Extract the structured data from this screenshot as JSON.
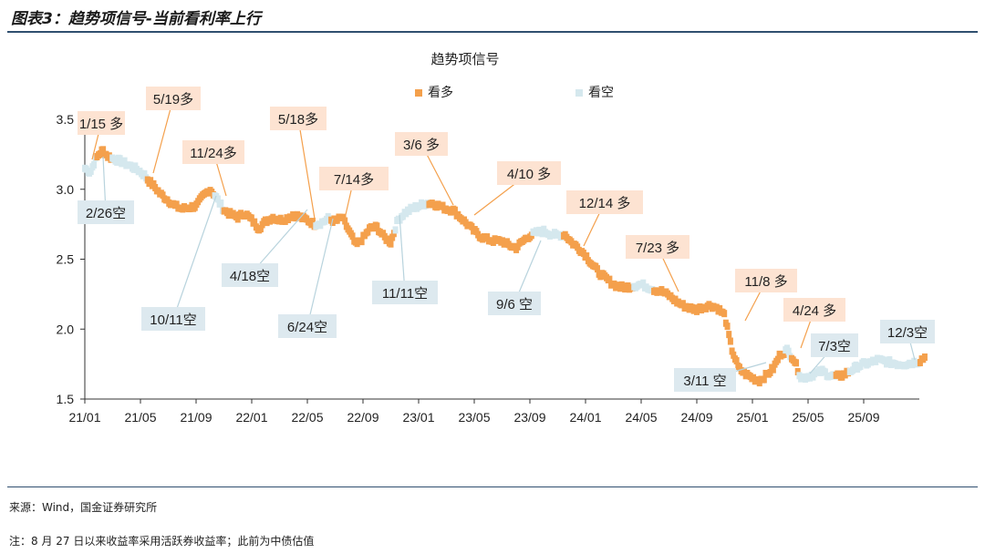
{
  "figure_title": "图表3：趋势项信号-当前看利率上行",
  "source": "来源：Wind，国金证券研究所",
  "note": "注：8 月 27 日以来收益率采用活跃券收益率；此前为中债估值",
  "colors": {
    "long": "#f4a04c",
    "short": "#d5e8ee",
    "long_label_bg": "#fde3d2",
    "short_label_bg": "#dde9ef",
    "axis": "#333333"
  },
  "chart_data": {
    "type": "scatter",
    "title": "趋势项信号",
    "legend": [
      {
        "name": "看多",
        "color": "#f4a04c"
      },
      {
        "name": "看空",
        "color": "#d5e8ee"
      }
    ],
    "legend_placement": "top-right",
    "x_ticks": [
      "21/01",
      "21/05",
      "21/09",
      "22/01",
      "22/05",
      "22/09",
      "23/01",
      "23/05",
      "23/09",
      "24/01",
      "24/05",
      "24/09",
      "25/01",
      "25/05",
      "25/09"
    ],
    "y_ticks": [
      "1.5",
      "2.0",
      "2.5",
      "3.0",
      "3.5"
    ],
    "ylim": [
      1.5,
      3.5
    ],
    "xlim_months": [
      0,
      60
    ],
    "series_path": [
      [
        0.0,
        3.15
      ],
      [
        0.4,
        3.12
      ],
      [
        0.7,
        3.2
      ],
      [
        1.0,
        3.25
      ],
      [
        1.3,
        3.28
      ],
      [
        1.6,
        3.24
      ],
      [
        2.0,
        3.22
      ],
      [
        2.6,
        3.2
      ],
      [
        3.2,
        3.17
      ],
      [
        3.8,
        3.14
      ],
      [
        4.3,
        3.1
      ],
      [
        4.6,
        3.06
      ],
      [
        5.0,
        3.02
      ],
      [
        5.4,
        2.97
      ],
      [
        6.0,
        2.92
      ],
      [
        6.5,
        2.88
      ],
      [
        7.0,
        2.86
      ],
      [
        7.5,
        2.87
      ],
      [
        8.0,
        2.88
      ],
      [
        8.5,
        2.95
      ],
      [
        9.0,
        3.0
      ],
      [
        9.4,
        2.95
      ],
      [
        10.0,
        2.85
      ],
      [
        10.5,
        2.82
      ],
      [
        11.0,
        2.8
      ],
      [
        11.5,
        2.83
      ],
      [
        12.0,
        2.78
      ],
      [
        12.5,
        2.72
      ],
      [
        13.0,
        2.77
      ],
      [
        13.5,
        2.8
      ],
      [
        14.0,
        2.78
      ],
      [
        14.5,
        2.79
      ],
      [
        15.0,
        2.82
      ],
      [
        15.5,
        2.8
      ],
      [
        16.0,
        2.78
      ],
      [
        16.5,
        2.75
      ],
      [
        17.0,
        2.76
      ],
      [
        17.5,
        2.79
      ],
      [
        18.0,
        2.77
      ],
      [
        18.5,
        2.8
      ],
      [
        19.0,
        2.7
      ],
      [
        19.5,
        2.6
      ],
      [
        20.0,
        2.65
      ],
      [
        20.5,
        2.72
      ],
      [
        21.0,
        2.73
      ],
      [
        21.5,
        2.66
      ],
      [
        22.0,
        2.62
      ],
      [
        22.5,
        2.78
      ],
      [
        23.0,
        2.83
      ],
      [
        23.5,
        2.86
      ],
      [
        24.0,
        2.88
      ],
      [
        24.5,
        2.9
      ],
      [
        25.0,
        2.9
      ],
      [
        25.5,
        2.88
      ],
      [
        26.0,
        2.86
      ],
      [
        26.5,
        2.85
      ],
      [
        27.0,
        2.8
      ],
      [
        27.5,
        2.75
      ],
      [
        28.0,
        2.7
      ],
      [
        28.5,
        2.66
      ],
      [
        29.0,
        2.64
      ],
      [
        29.5,
        2.63
      ],
      [
        30.0,
        2.63
      ],
      [
        30.5,
        2.6
      ],
      [
        31.0,
        2.58
      ],
      [
        31.5,
        2.63
      ],
      [
        32.0,
        2.67
      ],
      [
        32.5,
        2.69
      ],
      [
        33.0,
        2.7
      ],
      [
        33.5,
        2.68
      ],
      [
        34.0,
        2.67
      ],
      [
        34.5,
        2.68
      ],
      [
        35.0,
        2.62
      ],
      [
        35.5,
        2.58
      ],
      [
        36.0,
        2.53
      ],
      [
        36.5,
        2.46
      ],
      [
        37.0,
        2.4
      ],
      [
        37.5,
        2.36
      ],
      [
        38.0,
        2.32
      ],
      [
        38.5,
        2.3
      ],
      [
        39.0,
        2.3
      ],
      [
        39.5,
        2.31
      ],
      [
        40.0,
        2.32
      ],
      [
        40.5,
        2.3
      ],
      [
        41.0,
        2.28
      ],
      [
        41.5,
        2.27
      ],
      [
        42.0,
        2.24
      ],
      [
        42.5,
        2.2
      ],
      [
        43.0,
        2.17
      ],
      [
        43.5,
        2.15
      ],
      [
        44.0,
        2.14
      ],
      [
        44.5,
        2.16
      ],
      [
        45.0,
        2.17
      ],
      [
        45.5,
        2.15
      ],
      [
        46.0,
        2.1
      ],
      [
        46.5,
        1.86
      ],
      [
        47.0,
        1.72
      ],
      [
        47.5,
        1.68
      ],
      [
        48.0,
        1.65
      ],
      [
        48.5,
        1.63
      ],
      [
        49.0,
        1.67
      ],
      [
        49.5,
        1.72
      ],
      [
        50.0,
        1.82
      ],
      [
        50.5,
        1.85
      ],
      [
        51.0,
        1.78
      ],
      [
        51.5,
        1.65
      ],
      [
        52.0,
        1.66
      ],
      [
        52.5,
        1.68
      ],
      [
        53.0,
        1.7
      ],
      [
        53.5,
        1.67
      ],
      [
        54.0,
        1.66
      ],
      [
        54.5,
        1.67
      ],
      [
        55.0,
        1.7
      ],
      [
        55.5,
        1.73
      ],
      [
        56.0,
        1.75
      ],
      [
        56.5,
        1.76
      ],
      [
        57.0,
        1.78
      ],
      [
        57.5,
        1.77
      ],
      [
        58.0,
        1.76
      ],
      [
        58.5,
        1.75
      ],
      [
        59.0,
        1.75
      ],
      [
        59.5,
        1.76
      ],
      [
        60.0,
        1.77
      ],
      [
        60.4,
        1.8
      ]
    ],
    "short_ranges_months": [
      [
        0.0,
        0.8
      ],
      [
        1.9,
        4.4
      ],
      [
        9.3,
        9.9
      ],
      [
        16.6,
        17.7
      ],
      [
        22.3,
        24.7
      ],
      [
        32.2,
        34.4
      ],
      [
        39.4,
        40.9
      ],
      [
        50.3,
        50.8
      ],
      [
        51.3,
        53.9
      ],
      [
        54.9,
        60.0
      ]
    ],
    "annotations": [
      {
        "text": "1/15 多",
        "signal": "long"
      },
      {
        "text": "2/26空",
        "signal": "short"
      },
      {
        "text": "5/19多",
        "signal": "long"
      },
      {
        "text": "11/24多",
        "signal": "long"
      },
      {
        "text": "10/11空",
        "signal": "short"
      },
      {
        "text": "4/18空",
        "signal": "short"
      },
      {
        "text": "5/18多",
        "signal": "long"
      },
      {
        "text": "6/24空",
        "signal": "short"
      },
      {
        "text": "7/14多",
        "signal": "long"
      },
      {
        "text": "11/11空",
        "signal": "short"
      },
      {
        "text": "3/6 多",
        "signal": "long"
      },
      {
        "text": "4/10 多",
        "signal": "long"
      },
      {
        "text": "9/6 空",
        "signal": "short"
      },
      {
        "text": "12/14 多",
        "signal": "long"
      },
      {
        "text": "7/23 多",
        "signal": "long"
      },
      {
        "text": "11/8 多",
        "signal": "long"
      },
      {
        "text": "3/11 空",
        "signal": "short"
      },
      {
        "text": "4/24 多",
        "signal": "long"
      },
      {
        "text": "7/3空",
        "signal": "short"
      },
      {
        "text": "12/3空",
        "signal": "short"
      }
    ]
  }
}
